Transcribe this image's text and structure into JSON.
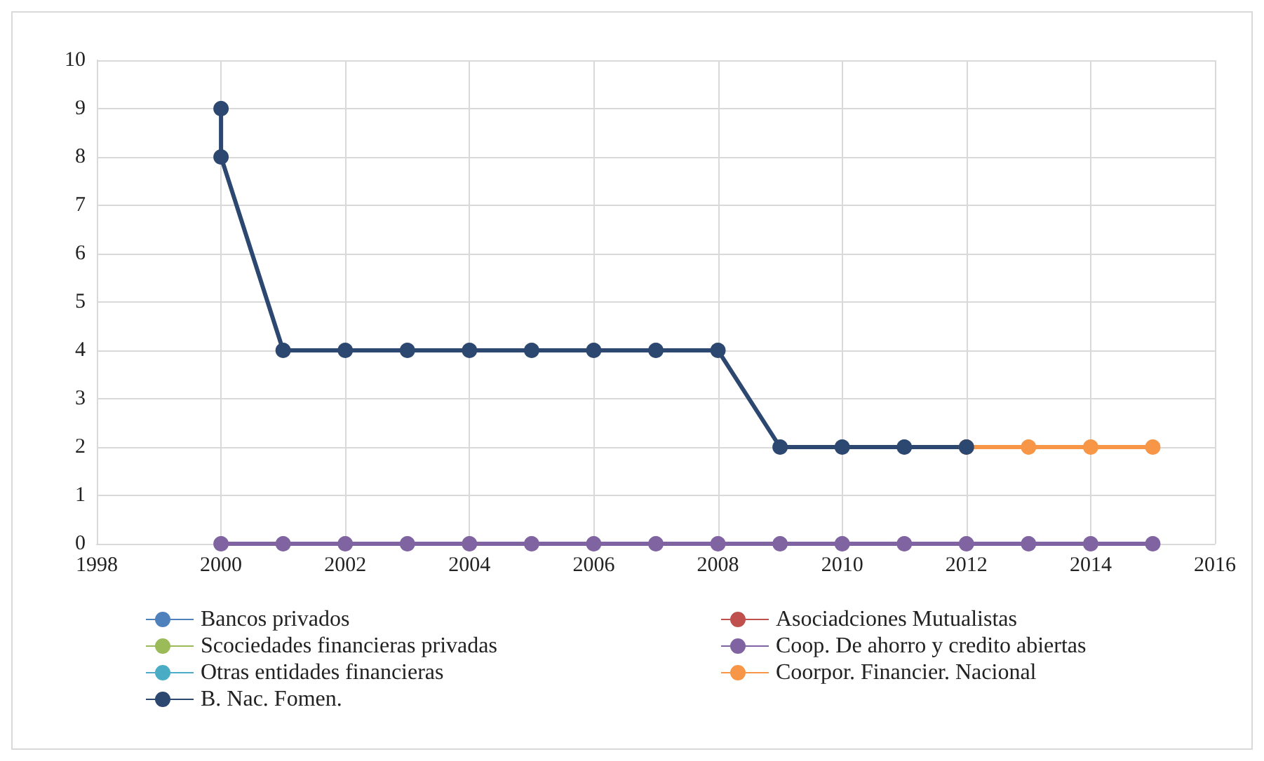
{
  "chart_data": {
    "type": "line",
    "xlim": [
      1998,
      2016
    ],
    "xticks": [
      1998,
      2000,
      2002,
      2004,
      2006,
      2008,
      2010,
      2012,
      2014,
      2016
    ],
    "ylim": [
      0,
      10
    ],
    "yticks": [
      0,
      1,
      2,
      3,
      4,
      5,
      6,
      7,
      8,
      9,
      10
    ],
    "grid": true,
    "legend": "bottom",
    "marker": "circle",
    "line_style": "solid",
    "series": [
      {
        "name": "Bancos privados",
        "color": "#4f81bd"
      },
      {
        "name": "Asociadciones Mutualistas",
        "color": "#c0504d"
      },
      {
        "name": "Scociedades financieras privadas",
        "color": "#9bbb59"
      },
      {
        "name": "Coop. De ahorro y credito abiertas",
        "color": "#8064a2",
        "x": [
          2000,
          2001,
          2002,
          2003,
          2004,
          2005,
          2006,
          2007,
          2008,
          2009,
          2010,
          2011,
          2012,
          2013,
          2014,
          2015
        ],
        "values": [
          0,
          0,
          0,
          0,
          0,
          0,
          0,
          0,
          0,
          0,
          0,
          0,
          0,
          0,
          0,
          0
        ]
      },
      {
        "name": "Otras entidades financieras",
        "color": "#4bacc6"
      },
      {
        "name": "Coorpor. Financier. Nacional",
        "color": "#f79646",
        "x": [
          2012,
          2013,
          2014,
          2015
        ],
        "values": [
          2,
          2,
          2,
          2
        ]
      },
      {
        "name": "B. Nac. Fomen.",
        "color": "#2c4770",
        "x": [
          2000,
          2000,
          2001,
          2002,
          2003,
          2004,
          2005,
          2006,
          2007,
          2008,
          2009,
          2010,
          2011,
          2012
        ],
        "values": [
          9,
          8,
          4,
          4,
          4,
          4,
          4,
          4,
          4,
          4,
          2,
          2,
          2,
          2
        ]
      }
    ]
  }
}
